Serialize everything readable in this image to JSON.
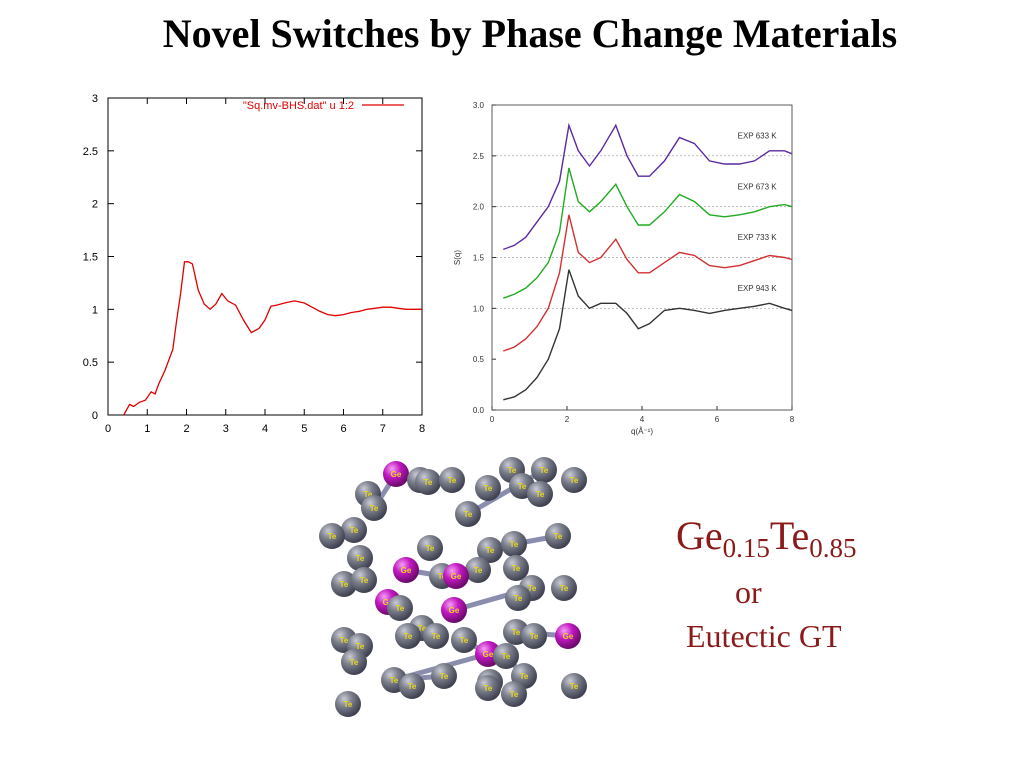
{
  "slide": {
    "title": "Novel Switches by Phase Change Materials"
  },
  "composition": {
    "element1": "Ge",
    "sub1": "0.15",
    "element2": "Te",
    "sub2": "0.85",
    "or_text": "or",
    "alt_name": "Eutectic GT"
  },
  "chart_data": [
    {
      "type": "line",
      "legend": "\"Sq.mv-BHS.dat\" u 1:2",
      "xlim": [
        0,
        8
      ],
      "ylim": [
        0,
        3
      ],
      "xticks": [
        "0",
        "1",
        "2",
        "3",
        "4",
        "5",
        "6",
        "7",
        "8"
      ],
      "yticks": [
        "0",
        "0.5",
        "1",
        "1.5",
        "2",
        "2.5",
        "3"
      ],
      "line_color": "#e00000",
      "series": [
        {
          "x": [
            0.4,
            0.55,
            0.65,
            0.8,
            0.95,
            1.1,
            1.2,
            1.3,
            1.45,
            1.55,
            1.65,
            1.75,
            1.85,
            1.95,
            2.05,
            2.15,
            2.3,
            2.45,
            2.6,
            2.75,
            2.9,
            3.05,
            3.25,
            3.45,
            3.65,
            3.85,
            4.0,
            4.15,
            4.3,
            4.5,
            4.75,
            5.0,
            5.2,
            5.4,
            5.6,
            5.8,
            6.0,
            6.2,
            6.4,
            6.6,
            6.8,
            7.0,
            7.2,
            7.4,
            7.6,
            7.8,
            8.0
          ],
          "y": [
            0.0,
            0.1,
            0.08,
            0.12,
            0.14,
            0.22,
            0.2,
            0.3,
            0.42,
            0.52,
            0.62,
            0.9,
            1.15,
            1.45,
            1.45,
            1.43,
            1.18,
            1.05,
            1.0,
            1.05,
            1.15,
            1.08,
            1.04,
            0.9,
            0.78,
            0.82,
            0.9,
            1.03,
            1.04,
            1.06,
            1.08,
            1.06,
            1.02,
            0.98,
            0.95,
            0.94,
            0.95,
            0.97,
            0.98,
            1.0,
            1.01,
            1.02,
            1.02,
            1.01,
            1.0,
            1.0,
            1.0
          ]
        }
      ]
    },
    {
      "type": "line",
      "ylabel": "S(q)",
      "xlabel": "q(Å⁻¹)",
      "xlim": [
        0,
        8
      ],
      "ylim": [
        0,
        3
      ],
      "xticks": [
        "0",
        "2",
        "4",
        "6",
        "8"
      ],
      "yticks": [
        "0.0",
        "0.5",
        "1.0",
        "1.5",
        "2.0",
        "2.5",
        "3.0"
      ],
      "grid_lines_at": [
        1.0,
        1.5,
        2.0,
        2.5
      ],
      "series": [
        {
          "name": "EXP 633 K",
          "color": "#5a2aa0",
          "x": [
            0.3,
            0.6,
            0.9,
            1.2,
            1.5,
            1.8,
            2.05,
            2.3,
            2.6,
            2.9,
            3.3,
            3.6,
            3.9,
            4.2,
            4.6,
            5.0,
            5.4,
            5.8,
            6.2,
            6.6,
            7.0,
            7.4,
            7.8,
            8.0
          ],
          "y": [
            1.58,
            1.62,
            1.7,
            1.85,
            2.0,
            2.25,
            2.8,
            2.55,
            2.4,
            2.55,
            2.8,
            2.5,
            2.3,
            2.3,
            2.45,
            2.68,
            2.62,
            2.45,
            2.42,
            2.42,
            2.45,
            2.55,
            2.55,
            2.52
          ]
        },
        {
          "name": "EXP 673 K",
          "color": "#22aa22",
          "x": [
            0.3,
            0.6,
            0.9,
            1.2,
            1.5,
            1.8,
            2.05,
            2.3,
            2.6,
            2.9,
            3.3,
            3.6,
            3.9,
            4.2,
            4.6,
            5.0,
            5.4,
            5.8,
            6.2,
            6.6,
            7.0,
            7.4,
            7.8,
            8.0
          ],
          "y": [
            1.1,
            1.14,
            1.2,
            1.3,
            1.45,
            1.75,
            2.38,
            2.05,
            1.95,
            2.05,
            2.22,
            2.0,
            1.82,
            1.82,
            1.95,
            2.12,
            2.05,
            1.92,
            1.9,
            1.92,
            1.95,
            2.0,
            2.02,
            2.0
          ]
        },
        {
          "name": "EXP 733 K",
          "color": "#d33030",
          "x": [
            0.3,
            0.6,
            0.9,
            1.2,
            1.5,
            1.8,
            2.05,
            2.3,
            2.6,
            2.9,
            3.3,
            3.6,
            3.9,
            4.2,
            4.6,
            5.0,
            5.4,
            5.8,
            6.2,
            6.6,
            7.0,
            7.4,
            7.8,
            8.0
          ],
          "y": [
            0.58,
            0.62,
            0.7,
            0.82,
            1.0,
            1.35,
            1.92,
            1.55,
            1.45,
            1.5,
            1.68,
            1.48,
            1.35,
            1.35,
            1.45,
            1.55,
            1.52,
            1.42,
            1.4,
            1.42,
            1.47,
            1.52,
            1.5,
            1.48
          ]
        },
        {
          "name": "EXP 943 K",
          "color": "#333333",
          "x": [
            0.3,
            0.6,
            0.9,
            1.2,
            1.5,
            1.8,
            2.05,
            2.3,
            2.6,
            2.9,
            3.3,
            3.6,
            3.9,
            4.2,
            4.6,
            5.0,
            5.4,
            5.8,
            6.2,
            6.6,
            7.0,
            7.4,
            7.8,
            8.0
          ],
          "y": [
            0.1,
            0.13,
            0.2,
            0.32,
            0.5,
            0.8,
            1.38,
            1.12,
            1.0,
            1.05,
            1.05,
            0.95,
            0.8,
            0.85,
            0.98,
            1.0,
            0.98,
            0.95,
            0.98,
            1.0,
            1.02,
            1.05,
            1.0,
            0.98
          ]
        }
      ]
    }
  ],
  "molecule": {
    "atom_labels": [
      "Ge",
      "Te"
    ],
    "ge_color": "#cc22cc",
    "te_color": "#7a7d8a",
    "label_color": "#e8d820"
  }
}
